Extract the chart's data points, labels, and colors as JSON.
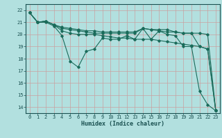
{
  "xlabel": "Humidex (Indice chaleur)",
  "bg_color": "#b2e0df",
  "grid_color_v": "#c9a0a0",
  "grid_color_h": "#c9a0a0",
  "line_color": "#1a6b5a",
  "xlim": [
    -0.5,
    23.5
  ],
  "ylim": [
    13.5,
    22.5
  ],
  "xticks": [
    0,
    1,
    2,
    3,
    4,
    5,
    6,
    7,
    8,
    9,
    10,
    11,
    12,
    13,
    14,
    15,
    16,
    17,
    18,
    19,
    20,
    21,
    22,
    23
  ],
  "yticks": [
    14,
    15,
    16,
    17,
    18,
    19,
    20,
    21,
    22
  ],
  "series": [
    {
      "x": [
        0,
        1,
        2,
        3,
        4,
        5,
        6,
        7,
        8,
        9,
        10,
        11,
        12,
        13,
        14,
        15,
        16,
        17,
        18,
        19,
        20,
        21,
        22,
        23
      ],
      "y": [
        21.8,
        21.0,
        21.0,
        20.7,
        19.9,
        17.8,
        17.3,
        18.6,
        18.8,
        19.7,
        19.6,
        19.6,
        19.9,
        19.6,
        20.5,
        19.6,
        20.3,
        20.0,
        19.9,
        19.0,
        19.0,
        15.3,
        14.2,
        13.7
      ]
    },
    {
      "x": [
        0,
        1,
        2,
        3,
        4,
        5,
        6,
        7,
        8,
        9,
        10,
        11,
        12,
        13,
        14,
        15,
        16,
        17,
        18,
        19,
        20,
        21,
        22,
        23
      ],
      "y": [
        21.8,
        21.0,
        21.1,
        20.8,
        20.3,
        20.1,
        20.0,
        20.0,
        20.0,
        19.9,
        19.8,
        19.7,
        19.7,
        19.6,
        19.6,
        19.6,
        19.5,
        19.4,
        19.3,
        19.2,
        19.1,
        19.0,
        18.8,
        13.7
      ]
    },
    {
      "x": [
        0,
        1,
        2,
        3,
        4,
        5,
        6,
        7,
        8,
        9,
        10,
        11,
        12,
        13,
        14,
        15,
        16,
        17,
        18,
        19,
        20,
        21,
        22,
        23
      ],
      "y": [
        21.8,
        21.0,
        21.1,
        20.8,
        20.5,
        20.4,
        20.3,
        20.2,
        20.1,
        20.1,
        20.1,
        20.1,
        20.1,
        20.1,
        20.5,
        20.4,
        20.3,
        20.2,
        20.2,
        20.1,
        20.1,
        20.1,
        20.0,
        13.7
      ]
    },
    {
      "x": [
        0,
        1,
        2,
        3,
        4,
        5,
        6,
        7,
        8,
        9,
        10,
        11,
        12,
        13,
        14,
        15,
        16,
        17,
        18,
        19,
        20,
        21,
        22,
        23
      ],
      "y": [
        21.8,
        21.0,
        21.1,
        20.8,
        20.6,
        20.5,
        20.4,
        20.3,
        20.3,
        20.2,
        20.2,
        20.2,
        20.2,
        20.2,
        20.5,
        20.4,
        20.4,
        20.4,
        20.2,
        20.1,
        20.1,
        19.0,
        18.8,
        13.7
      ]
    }
  ]
}
